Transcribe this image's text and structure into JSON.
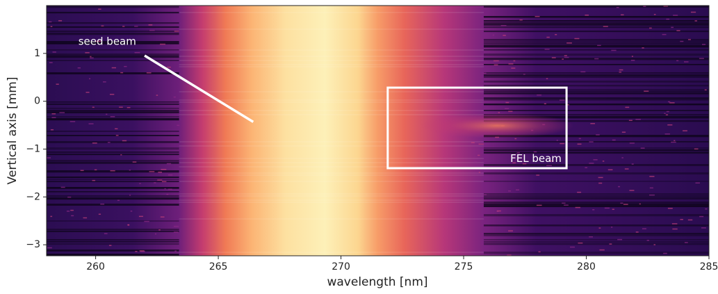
{
  "chart_data": {
    "type": "image",
    "xlabel": "wavelength [nm]",
    "ylabel": "Vertical axis [mm]",
    "xlim": [
      258,
      285
    ],
    "ylim": [
      -3.23,
      2.0
    ],
    "xticks": [
      260,
      265,
      270,
      275,
      280,
      285
    ],
    "yticks": [
      1,
      0,
      {
        "value": -1,
        "label": "−1"
      },
      {
        "value": -2,
        "label": "−2"
      },
      {
        "value": -3,
        "label": "−3"
      }
    ],
    "colormap": "magma",
    "annotations": [
      "seed beam",
      "FEL beam"
    ]
  }
}
